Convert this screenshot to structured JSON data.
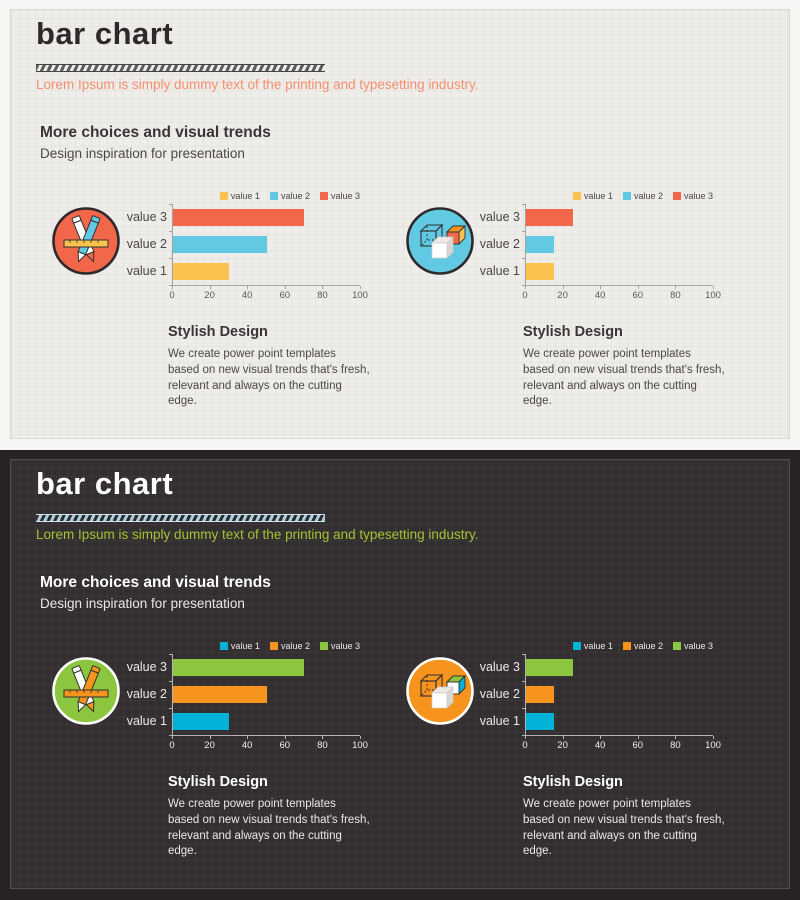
{
  "slides": [
    {
      "theme": "light",
      "title": "bar chart",
      "subtitle": "Lorem Ipsum is simply dummy text of the printing and typesetting industry.",
      "section": {
        "heading": "More choices and visual trends",
        "subheading": "Design inspiration for presentation"
      },
      "colors": {
        "panel_background": "#efedea",
        "subtitle_accent": "#f58e6e",
        "series": {
          "value 1": "#fcc24e",
          "value 2": "#62c9e2",
          "value 3": "#f2664a"
        },
        "icon_pencils_circle": "#f2664a",
        "icon_cubes_circle": "#62c9e2"
      },
      "panels": [
        {
          "icon": "pencils-ruler-icon",
          "chart_index": 0,
          "heading": "Stylish Design",
          "body": "We create power point templates\nbased on new visual trends that's fresh,\nrelevant and always on the cutting\nedge."
        },
        {
          "icon": "cubes-icon",
          "chart_index": 1,
          "heading": "Stylish Design",
          "body": "We create power point templates\nbased on new visual trends that's fresh,\nrelevant and always on the cutting\nedge."
        }
      ]
    },
    {
      "theme": "dark",
      "title": "bar chart",
      "subtitle": "Lorem Ipsum is simply dummy text of the printing and typesetting industry.",
      "section": {
        "heading": "More choices and visual trends",
        "subheading": "Design inspiration for presentation"
      },
      "colors": {
        "panel_background": "#332e2f",
        "subtitle_accent": "#a3c432",
        "series": {
          "value 1": "#00b1d8",
          "value 2": "#f7941e",
          "value 3": "#8cc63e"
        },
        "icon_pencils_circle": "#8cc63e",
        "icon_cubes_circle": "#f7941e"
      },
      "panels": [
        {
          "icon": "pencils-ruler-icon",
          "chart_index": 2,
          "heading": "Stylish Design",
          "body": "We create power point templates\nbased on new visual trends that's fresh,\nrelevant and always on the cutting\nedge."
        },
        {
          "icon": "cubes-icon",
          "chart_index": 3,
          "heading": "Stylish Design",
          "body": "We create power point templates\nbased on new visual trends that's fresh,\nrelevant and always on the cutting\nedge."
        }
      ]
    }
  ],
  "chart_data": [
    {
      "type": "bar",
      "orientation": "horizontal",
      "title": "",
      "categories": [
        "value 3",
        "value 2",
        "value 1"
      ],
      "values": [
        70,
        50,
        30
      ],
      "bar_colors": [
        "#f2664a",
        "#62c9e2",
        "#fcc24e"
      ],
      "legend": [
        {
          "label": "value 1",
          "color": "#fcc24e"
        },
        {
          "label": "value 2",
          "color": "#62c9e2"
        },
        {
          "label": "value 3",
          "color": "#f2664a"
        }
      ],
      "legend_position": "top-right",
      "grid": false,
      "xlabel": "",
      "ylabel": "",
      "xlim": [
        0,
        100
      ],
      "xticks": [
        0,
        20,
        40,
        60,
        80,
        100
      ]
    },
    {
      "type": "bar",
      "orientation": "horizontal",
      "title": "",
      "categories": [
        "value 3",
        "value 2",
        "value 1"
      ],
      "values": [
        25,
        15,
        15
      ],
      "bar_colors": [
        "#f2664a",
        "#62c9e2",
        "#fcc24e"
      ],
      "legend": [
        {
          "label": "value 1",
          "color": "#fcc24e"
        },
        {
          "label": "value 2",
          "color": "#62c9e2"
        },
        {
          "label": "value 3",
          "color": "#f2664a"
        }
      ],
      "legend_position": "top-right",
      "grid": false,
      "xlabel": "",
      "ylabel": "",
      "xlim": [
        0,
        100
      ],
      "xticks": [
        0,
        20,
        40,
        60,
        80,
        100
      ]
    },
    {
      "type": "bar",
      "orientation": "horizontal",
      "title": "",
      "categories": [
        "value 3",
        "value 2",
        "value 1"
      ],
      "values": [
        70,
        50,
        30
      ],
      "bar_colors": [
        "#8cc63e",
        "#f7941e",
        "#00b1d8"
      ],
      "legend": [
        {
          "label": "value 1",
          "color": "#00b1d8"
        },
        {
          "label": "value 2",
          "color": "#f7941e"
        },
        {
          "label": "value 3",
          "color": "#8cc63e"
        }
      ],
      "legend_position": "top-right",
      "grid": false,
      "xlabel": "",
      "ylabel": "",
      "xlim": [
        0,
        100
      ],
      "xticks": [
        0,
        20,
        40,
        60,
        80,
        100
      ]
    },
    {
      "type": "bar",
      "orientation": "horizontal",
      "title": "",
      "categories": [
        "value 3",
        "value 2",
        "value 1"
      ],
      "values": [
        25,
        15,
        15
      ],
      "bar_colors": [
        "#8cc63e",
        "#f7941e",
        "#00b1d8"
      ],
      "legend": [
        {
          "label": "value 1",
          "color": "#00b1d8"
        },
        {
          "label": "value 2",
          "color": "#f7941e"
        },
        {
          "label": "value 3",
          "color": "#8cc63e"
        }
      ],
      "legend_position": "top-right",
      "grid": false,
      "xlabel": "",
      "ylabel": "",
      "xlim": [
        0,
        100
      ],
      "xticks": [
        0,
        20,
        40,
        60,
        80,
        100
      ]
    }
  ]
}
